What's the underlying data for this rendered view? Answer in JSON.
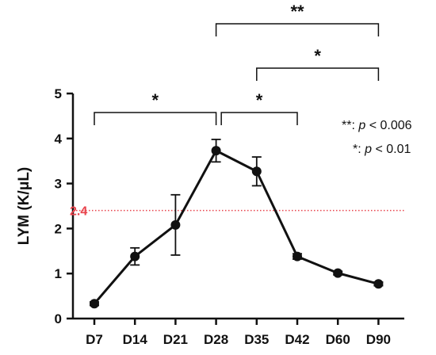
{
  "chart_data": {
    "type": "line",
    "categories": [
      "D7",
      "D14",
      "D21",
      "D28",
      "D35",
      "D42",
      "D60",
      "D90"
    ],
    "series": [
      {
        "values": [
          0.33,
          1.38,
          2.08,
          3.73,
          3.27,
          1.38,
          1.01,
          0.77
        ],
        "error": [
          0.04,
          0.19,
          0.67,
          0.25,
          0.32,
          0.06,
          0.04,
          0.04
        ],
        "color": "#111111"
      }
    ],
    "ylabel": "LYM (K/μL)",
    "ylim": [
      0,
      5
    ],
    "yticks": [
      "0",
      "1",
      "2",
      "3",
      "4",
      "5"
    ],
    "reference_line": {
      "value": 2.4,
      "label": "2.4",
      "color": "#e8434c",
      "style": "dotted"
    },
    "significance": [
      {
        "from": "D7",
        "to": "D28",
        "label": "*"
      },
      {
        "from": "D28",
        "to": "D42",
        "label": "*"
      },
      {
        "from": "D35",
        "to": "D90",
        "label": "*"
      },
      {
        "from": "D28",
        "to": "D90",
        "label": "**"
      }
    ],
    "legend": [
      {
        "prefix": "**: ",
        "italic": "p",
        "suffix": " < 0.006"
      },
      {
        "prefix": "*: ",
        "italic": "p",
        "suffix": " < 0.01"
      }
    ],
    "grid": false,
    "legend_position": "right"
  }
}
